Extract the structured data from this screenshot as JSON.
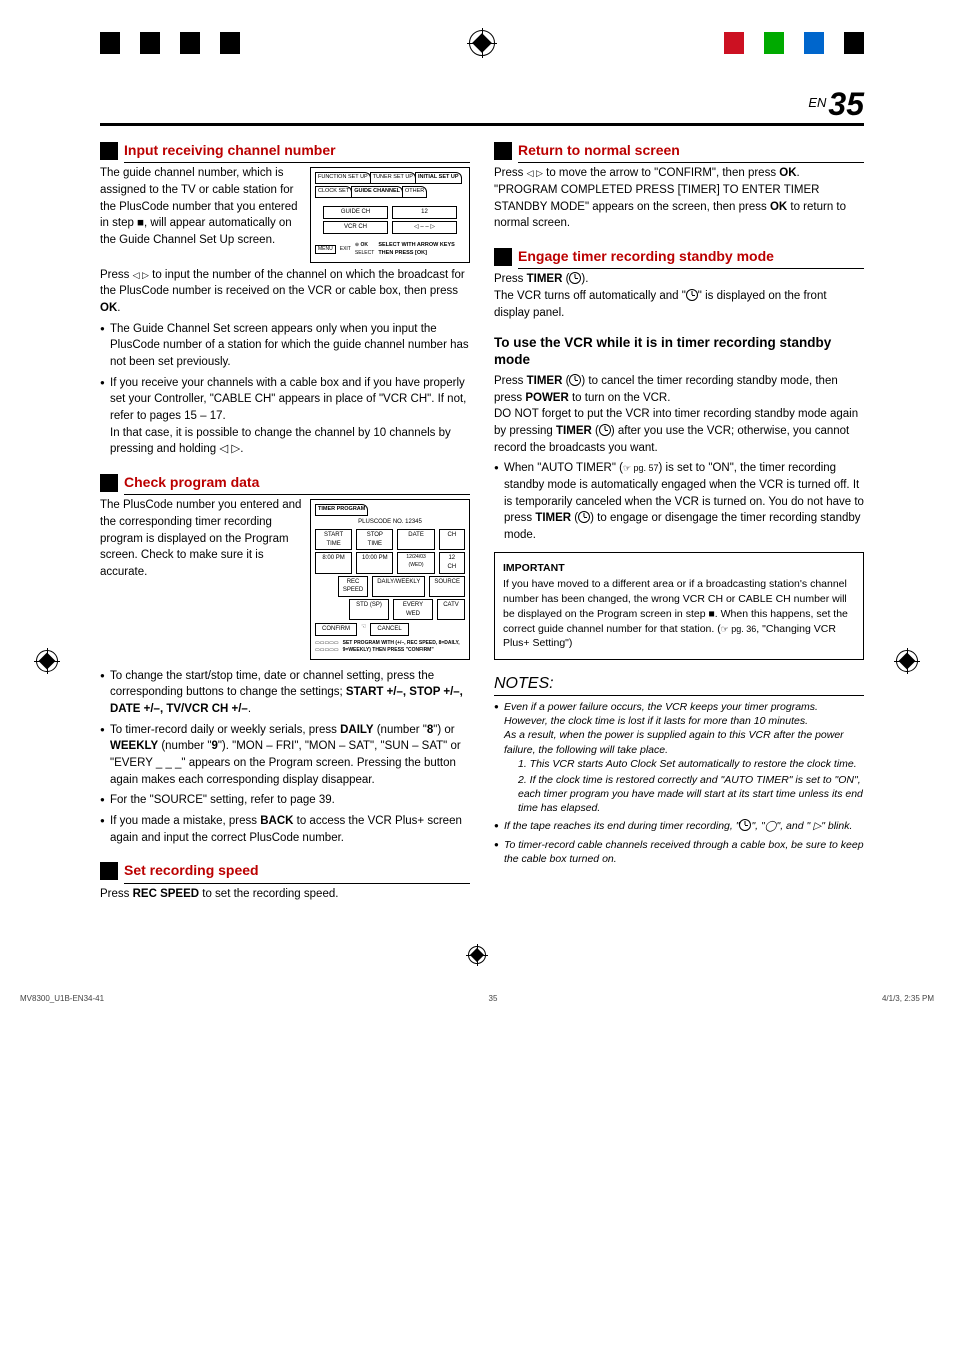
{
  "page_label_prefix": "EN",
  "page_number": "35",
  "reg_colors_left": [
    "#000",
    "#fff",
    "#000",
    "#fff",
    "#000",
    "#fff",
    "#000"
  ],
  "reg_colors_right": [
    "#c12",
    "#fff",
    "#0a0",
    "#fff",
    "#06c",
    "#fff",
    "#000"
  ],
  "left": {
    "s5": {
      "title": "Input receiving channel number",
      "p1": "The guide channel number, which is assigned to the TV or cable station for the PlusCode number that you entered in step ■, will appear automatically on the Guide Channel Set Up screen.",
      "p2a": "Press ",
      "p2b": " to input the number of the channel on which the broadcast for the PlusCode number is received on the VCR or cable box, then press ",
      "ok": "OK",
      "p2c": ".",
      "b1": "The Guide Channel Set screen appears only when you input the PlusCode number of a station for which the guide channel number has not been set previously.",
      "b2": "If you receive your channels with a cable box and if you have properly set your Controller, \"CABLE CH\" appears in place of \"VCR CH\". If not, refer to pages 15 – 17.",
      "b2b": "In that case, it is possible to change the channel by 10 channels by pressing and holding ◁ ▷.",
      "screen": {
        "tabs": [
          "FUNCTION SET UP",
          "TUNER SET UP",
          "INITIAL SET UP"
        ],
        "subtabs": [
          "CLOCK SET",
          "GUIDE CHANNEL",
          "OTHER"
        ],
        "row1_l": "GUIDE CH",
        "row1_r": "12",
        "row2_l": "VCR CH",
        "row2_r": "◁    – –    ▷",
        "foot1": "OK",
        "foot2": "SELECT",
        "foot_msg": "SELECT WITH ARROW KEYS THEN PRESS [OK]",
        "exit": "EXIT"
      }
    },
    "s6": {
      "title": "Check program data",
      "p1": "The PlusCode number you entered and the corresponding timer recording program is displayed on the Program screen. Check to make sure it is accurate.",
      "b1a": "To change the start/stop time, date or channel setting, press the corresponding buttons to change the settings; ",
      "b1_bold": "START +/–, STOP +/–, DATE +/–, TV/VCR CH +/–",
      "b1c": ".",
      "b2a": "To timer-record daily or weekly serials, press ",
      "b2_daily": "DAILY",
      "b2_d8": " (number \"",
      "b2_8": "8",
      "b2_or": "\") or ",
      "b2_weekly": "WEEKLY",
      "b2_9o": " (number \"",
      "b2_9": "9",
      "b2_9c": "\"). \"MON – FRI\", \"MON – SAT\", \"SUN – SAT\" or \"EVERY _ _ _\" appears on the Program screen. Pressing the button again makes each corresponding display disappear.",
      "b3": "For the \"SOURCE\" setting, refer to page 39.",
      "b4a": "If you made a mistake, press ",
      "b4_back": "BACK",
      "b4b": " to access the VCR Plus+ screen again and input the correct PlusCode number.",
      "screen": {
        "tab": "TIMER PROGRAM",
        "plus": "PLUSCODE NO.",
        "plusno": "12345",
        "h": [
          "START TIME",
          "STOP TIME",
          "DATE",
          "CH"
        ],
        "r1": [
          "8:00 PM",
          "10:00 PM",
          "12/24/03 (WED)",
          "12 CH"
        ],
        "h2l": "REC SPEED",
        "h2r": "DAILY/WEEKLY",
        "h3": "SOURCE",
        "r2l": "STD (SP)",
        "r2r": "EVERY WED",
        "r3": "CATV",
        "confirm": "CONFIRM",
        "cancel": "CANCEL",
        "foot": "SET PROGRAM WITH (+/–, REC SPEED, 8=DAILY, 9=WEEKLY) THEN PRESS \"CONFIRM\""
      }
    },
    "s7": {
      "title": "Set recording speed",
      "p1a": "Press ",
      "p1_bold": "REC SPEED",
      "p1b": " to set the recording speed."
    }
  },
  "right": {
    "s8": {
      "title": "Return to normal screen",
      "p1a": "Press ",
      "p1b": " to move the arrow to \"CONFIRM\", then press ",
      "ok": "OK",
      "p1c": ".",
      "p2a": "\"PROGRAM COMPLETED PRESS [TIMER] TO ENTER TIMER STANDBY MODE\" appears on the screen, then press ",
      "p2b": " to return to normal screen."
    },
    "s9": {
      "title": "Engage timer recording standby mode",
      "p1a": "Press ",
      "p1_timer": "TIMER",
      "p1b": " (",
      "p1c": ").",
      "p2": "The VCR turns off automatically and \"",
      "p2b": "\" is displayed on the front display panel."
    },
    "use_title": "To use the VCR while it is in timer recording standby mode",
    "use_p1a": "Press ",
    "use_timer": "TIMER",
    "use_p1b": " (",
    "use_p1c": ") to cancel the timer recording standby mode, then press ",
    "use_power": "POWER",
    "use_p1d": " to turn on the VCR.",
    "use_p2a": "DO NOT forget to put the VCR into timer recording standby mode again by pressing ",
    "use_p2b": ") after you use the VCR; otherwise, you cannot record the broadcasts you want.",
    "use_b1a": "When \"AUTO TIMER\" (",
    "use_pg": "☞ pg. 57",
    "use_b1b": ") is set to \"ON\", the timer recording standby mode is automatically engaged when the VCR is turned off. It is temporarily canceled when the VCR is turned on. You do not have to press ",
    "use_b1c": ") to engage or disengage the timer recording standby mode.",
    "important": {
      "title": "IMPORTANT",
      "body_a": "If you have moved to a different area or if a broadcasting station's channel number has been changed, the wrong VCR CH or CABLE CH number will be displayed on the Program screen in step ■. When this happens, set the correct guide channel number for that station. (",
      "pg": "☞ pg. 36",
      "body_b": ", \"Changing VCR Plus+ Setting\")"
    },
    "notes_title": "NOTES:",
    "n1": "Even if a power failure occurs, the VCR keeps your timer programs. However, the clock time is lost if it lasts for more than 10 minutes.",
    "n1b": "As a result, when the power is supplied again to this VCR after the power failure, the following will take place.",
    "n1_1": "1. This VCR starts Auto Clock Set automatically to restore the clock time.",
    "n1_2": "2. If the clock time is restored correctly and \"AUTO TIMER\" is set to \"ON\", each timer program you have made will start at its start time unless its end time has elapsed.",
    "n2a": "If the tape reaches its end during timer recording, \"",
    "n2b": "\", \"",
    "n2c": "\", and \" ▷\" blink.",
    "n3": "To timer-record cable channels received through a cable box, be sure to keep the cable box turned on."
  },
  "footer": {
    "left": "MV8300_U1B-EN34-41",
    "mid": "35",
    "right": "4/1/3, 2:35 PM"
  }
}
